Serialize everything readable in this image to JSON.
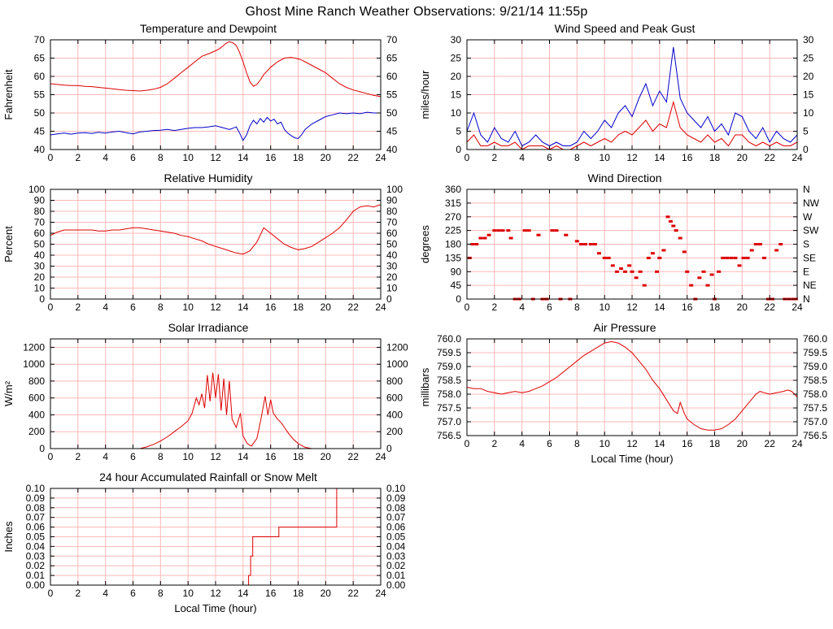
{
  "page_title": "Ghost Mine Ranch Weather Observations: 9/21/14 11:55p",
  "colors": {
    "red": "#dd0000",
    "blue": "#0000cc",
    "grid": "#ffb8b8",
    "frame": "#000000",
    "text": "#000000",
    "background": "#ffffff"
  },
  "chart_data": [
    {
      "type": "line",
      "title": "Temperature and Dewpoint",
      "ylabel": "Fahrenheit",
      "xlim": [
        0,
        24
      ],
      "xtick_step": 2,
      "ylim": [
        40,
        70
      ],
      "yticks": [
        40,
        45,
        50,
        55,
        60,
        65,
        70
      ],
      "ytick_decimals": 0,
      "series": [
        {
          "name": "temperature",
          "color": "#dd0000",
          "x": [
            0,
            0.5,
            1,
            1.5,
            2,
            2.5,
            3,
            3.5,
            4,
            4.5,
            5,
            5.5,
            6,
            6.5,
            7,
            7.5,
            8,
            8.5,
            9,
            9.5,
            10,
            10.5,
            11,
            11.5,
            12,
            12.25,
            12.5,
            12.75,
            13,
            13.25,
            13.5,
            13.75,
            14,
            14.25,
            14.5,
            14.75,
            15,
            15.25,
            15.5,
            16,
            16.5,
            17,
            17.5,
            18,
            18.25,
            18.5,
            19,
            19.5,
            20,
            20.5,
            21,
            21.5,
            22,
            22.5,
            23,
            23.5,
            24
          ],
          "y": [
            58,
            57.8,
            57.6,
            57.5,
            57.5,
            57.3,
            57.2,
            57,
            56.8,
            56.6,
            56.4,
            56.2,
            56.1,
            56,
            56.2,
            56.5,
            57,
            58,
            59.5,
            61,
            62.5,
            64,
            65.5,
            66.2,
            67,
            67.5,
            68.2,
            69,
            69.5,
            69.2,
            68.5,
            66.5,
            64,
            61,
            58.5,
            57.3,
            57.8,
            59,
            60.5,
            62.5,
            64,
            65,
            65.2,
            64.8,
            64.5,
            64,
            63,
            62,
            61,
            59.5,
            58,
            57,
            56.3,
            55.8,
            55.3,
            54.8,
            54.5
          ]
        },
        {
          "name": "dewpoint",
          "color": "#0000cc",
          "x": [
            0,
            0.5,
            1,
            1.5,
            2,
            2.5,
            3,
            3.5,
            4,
            4.5,
            5,
            5.5,
            6,
            6.5,
            7,
            7.5,
            8,
            8.5,
            9,
            9.5,
            10,
            10.5,
            11,
            11.5,
            12,
            12.5,
            13,
            13.25,
            13.5,
            13.75,
            14,
            14.25,
            14.5,
            14.75,
            15,
            15.25,
            15.5,
            15.75,
            16,
            16.25,
            16.5,
            16.75,
            17,
            17.25,
            17.5,
            17.75,
            18,
            18.25,
            18.5,
            19,
            19.5,
            20,
            20.5,
            21,
            21.5,
            22,
            22.5,
            23,
            23.5,
            24
          ],
          "y": [
            44,
            44.3,
            44.5,
            44.2,
            44.5,
            44.6,
            44.4,
            44.7,
            44.5,
            44.8,
            45,
            44.6,
            44.3,
            44.8,
            45,
            45.2,
            45.3,
            45.5,
            45.2,
            45.5,
            45.8,
            46,
            46,
            46.2,
            46.5,
            46,
            45.5,
            45.8,
            46.2,
            44.5,
            42.5,
            44,
            46.5,
            48,
            47,
            48.5,
            47.5,
            48.8,
            47.8,
            48.3,
            47,
            47.5,
            45.5,
            44.5,
            43.8,
            43.2,
            43,
            44,
            45.5,
            47,
            48,
            49,
            49.5,
            50,
            49.8,
            50,
            49.8,
            50.2,
            50,
            50
          ]
        }
      ]
    },
    {
      "type": "line",
      "title": "Wind Speed and Peak Gust",
      "ylabel": "miles/hour",
      "xlim": [
        0,
        24
      ],
      "xtick_step": 2,
      "ylim": [
        0,
        30
      ],
      "yticks": [
        0,
        5,
        10,
        15,
        20,
        25,
        30
      ],
      "ytick_decimals": 0,
      "series": [
        {
          "name": "peak-gust",
          "color": "#0000cc",
          "x": [
            0,
            0.5,
            1,
            1.5,
            2,
            2.5,
            3,
            3.5,
            4,
            4.5,
            5,
            5.5,
            6,
            6.5,
            7,
            7.5,
            8,
            8.5,
            9,
            9.5,
            10,
            10.5,
            11,
            11.5,
            12,
            12.5,
            13,
            13.5,
            14,
            14.5,
            15,
            15.5,
            16,
            16.5,
            17,
            17.5,
            18,
            18.5,
            19,
            19.5,
            20,
            20.5,
            21,
            21.5,
            22,
            22.5,
            23,
            23.5,
            24
          ],
          "y": [
            5,
            10,
            4,
            2,
            6,
            3,
            2,
            5,
            1,
            2,
            4,
            2,
            1,
            2,
            1,
            1,
            2,
            5,
            3,
            5,
            8,
            6,
            10,
            12,
            9,
            14,
            18,
            12,
            16,
            13,
            28,
            14,
            10,
            8,
            6,
            9,
            5,
            7,
            4,
            10,
            9,
            5,
            3,
            6,
            2,
            5,
            3,
            2,
            4
          ]
        },
        {
          "name": "wind-speed",
          "color": "#dd0000",
          "x": [
            0,
            0.5,
            1,
            1.5,
            2,
            2.5,
            3,
            3.5,
            4,
            4.5,
            5,
            5.5,
            6,
            6.5,
            7,
            7.5,
            8,
            8.5,
            9,
            9.5,
            10,
            10.5,
            11,
            11.5,
            12,
            12.5,
            13,
            13.5,
            14,
            14.5,
            15,
            15.5,
            16,
            16.5,
            17,
            17.5,
            18,
            18.5,
            19,
            19.5,
            20,
            20.5,
            21,
            21.5,
            22,
            22.5,
            23,
            23.5,
            24
          ],
          "y": [
            2,
            4,
            1,
            1,
            2,
            1,
            1,
            2,
            0,
            1,
            1,
            1,
            0,
            1,
            0,
            0,
            1,
            2,
            1,
            2,
            3,
            2,
            4,
            5,
            4,
            6,
            8,
            5,
            7,
            6,
            13,
            6,
            4,
            3,
            2,
            4,
            2,
            3,
            1,
            4,
            4,
            2,
            1,
            2,
            1,
            2,
            1,
            1,
            2
          ]
        }
      ]
    },
    {
      "type": "line",
      "title": "Relative Humidity",
      "ylabel": "Percent",
      "xlim": [
        0,
        24
      ],
      "xtick_step": 2,
      "ylim": [
        0,
        100
      ],
      "yticks": [
        0,
        10,
        20,
        30,
        40,
        50,
        60,
        70,
        80,
        90,
        100
      ],
      "ytick_decimals": 0,
      "series": [
        {
          "name": "relative-humidity",
          "color": "#dd0000",
          "x": [
            0,
            0.5,
            1,
            1.5,
            2,
            2.5,
            3,
            3.5,
            4,
            4.5,
            5,
            5.5,
            6,
            6.5,
            7,
            7.5,
            8,
            8.5,
            9,
            9.5,
            10,
            10.5,
            11,
            11.5,
            12,
            12.5,
            13,
            13.5,
            14,
            14.5,
            15,
            15.5,
            16,
            16.5,
            17,
            17.5,
            18,
            18.5,
            19,
            19.5,
            20,
            20.5,
            21,
            21.5,
            22,
            22.5,
            23,
            23.5,
            24
          ],
          "y": [
            58,
            61,
            63,
            63,
            63,
            63,
            63,
            62,
            62,
            63,
            63,
            64,
            65,
            65,
            64,
            63,
            62,
            61,
            60,
            58,
            57,
            55,
            53,
            50,
            48,
            46,
            44,
            42,
            41,
            44,
            52,
            65,
            60,
            55,
            50,
            47,
            45,
            46,
            48,
            52,
            56,
            60,
            65,
            72,
            80,
            84,
            85,
            84,
            86
          ]
        }
      ]
    },
    {
      "type": "scatter",
      "title": "Wind Direction",
      "ylabel": "degrees",
      "xlim": [
        0,
        24
      ],
      "xtick_step": 2,
      "ylim": [
        0,
        360
      ],
      "yticks": [
        0,
        45,
        90,
        135,
        180,
        225,
        270,
        315,
        360
      ],
      "ytick_decimals": 0,
      "rtick_labels": [
        "N",
        "NE",
        "E",
        "SE",
        "S",
        "SW",
        "W",
        "NW",
        "N"
      ],
      "series": [
        {
          "name": "wind-direction",
          "color": "#dd0000",
          "type": "scatter",
          "x": [
            0.2,
            0.4,
            0.7,
            1.0,
            1.3,
            1.6,
            2.0,
            2.3,
            2.6,
            3.0,
            3.2,
            3.5,
            3.8,
            4.2,
            4.5,
            4.8,
            5.2,
            5.5,
            5.8,
            6.2,
            6.5,
            6.8,
            7.2,
            7.5,
            8.0,
            8.3,
            8.6,
            9.0,
            9.3,
            9.6,
            10.0,
            10.3,
            10.6,
            10.9,
            11.2,
            11.5,
            11.8,
            12.0,
            12.3,
            12.6,
            12.9,
            13.2,
            13.5,
            13.8,
            14.0,
            14.3,
            14.6,
            14.8,
            15.0,
            15.2,
            15.5,
            15.8,
            16.0,
            16.3,
            16.6,
            16.9,
            17.2,
            17.5,
            17.8,
            18.0,
            18.3,
            18.6,
            18.9,
            19.2,
            19.5,
            19.8,
            20.1,
            20.4,
            20.7,
            21.0,
            21.3,
            21.6,
            21.9,
            22.2,
            22.5,
            22.8,
            23.1,
            23.4,
            23.7,
            23.9
          ],
          "y": [
            135,
            180,
            180,
            200,
            200,
            210,
            225,
            225,
            225,
            225,
            200,
            0,
            0,
            225,
            225,
            0,
            210,
            0,
            0,
            225,
            225,
            0,
            210,
            0,
            190,
            180,
            180,
            180,
            180,
            150,
            135,
            135,
            110,
            90,
            100,
            90,
            110,
            90,
            70,
            90,
            45,
            135,
            150,
            90,
            135,
            160,
            270,
            255,
            240,
            225,
            200,
            155,
            90,
            45,
            0,
            70,
            90,
            45,
            80,
            0,
            90,
            135,
            135,
            135,
            135,
            110,
            135,
            135,
            160,
            180,
            180,
            135,
            0,
            0,
            160,
            180,
            0,
            0,
            0,
            0
          ]
        }
      ]
    },
    {
      "type": "line",
      "title": "Solar Irradiance",
      "ylabel": "W/m²",
      "xlim": [
        0,
        24
      ],
      "xtick_step": 2,
      "ylim": [
        0,
        1300
      ],
      "yticks": [
        0,
        200,
        400,
        600,
        800,
        1000,
        1200
      ],
      "ytick_decimals": 0,
      "series": [
        {
          "name": "solar-irradiance",
          "color": "#dd0000",
          "x": [
            0,
            6.5,
            7,
            7.5,
            8,
            8.5,
            9,
            9.5,
            10,
            10.3,
            10.6,
            10.8,
            11,
            11.2,
            11.4,
            11.6,
            11.8,
            12,
            12.2,
            12.4,
            12.6,
            12.8,
            13,
            13.2,
            13.5,
            13.8,
            14,
            14.3,
            14.6,
            15,
            15.3,
            15.6,
            15.8,
            16,
            16.2,
            16.5,
            16.8,
            17,
            17.3,
            17.6,
            18,
            18.5,
            19,
            24
          ],
          "y": [
            0,
            0,
            20,
            50,
            90,
            140,
            200,
            260,
            330,
            420,
            600,
            520,
            650,
            480,
            870,
            560,
            900,
            600,
            880,
            450,
            830,
            400,
            800,
            350,
            250,
            420,
            150,
            60,
            30,
            120,
            350,
            620,
            400,
            580,
            420,
            350,
            300,
            250,
            180,
            120,
            60,
            15,
            0,
            0
          ]
        }
      ]
    },
    {
      "type": "line",
      "title": "Air Pressure",
      "ylabel": "millibars",
      "xlabel": "Local Time (hour)",
      "xlim": [
        0,
        24
      ],
      "xtick_step": 2,
      "ylim": [
        756.5,
        760.0
      ],
      "yticks": [
        756.5,
        757.0,
        757.5,
        758.0,
        758.5,
        759.0,
        759.5,
        760.0
      ],
      "ytick_decimals": 1,
      "series": [
        {
          "name": "air-pressure",
          "color": "#dd0000",
          "x": [
            0,
            0.5,
            1,
            1.5,
            2,
            2.5,
            3,
            3.5,
            4,
            4.5,
            5,
            5.5,
            6,
            6.5,
            7,
            7.5,
            8,
            8.5,
            9,
            9.5,
            10,
            10.5,
            11,
            11.5,
            12,
            12.5,
            13,
            13.5,
            14,
            14.5,
            15,
            15.3,
            15.5,
            15.8,
            16,
            16.5,
            17,
            17.5,
            18,
            18.5,
            19,
            19.5,
            20,
            20.5,
            21,
            21.3,
            21.6,
            22,
            22.5,
            23,
            23.3,
            23.6,
            24
          ],
          "y": [
            758.25,
            758.2,
            758.2,
            758.1,
            758.05,
            758.0,
            758.05,
            758.1,
            758.05,
            758.1,
            758.2,
            758.3,
            758.45,
            758.6,
            758.8,
            759.0,
            759.2,
            759.4,
            759.55,
            759.7,
            759.85,
            759.9,
            759.85,
            759.7,
            759.5,
            759.2,
            758.9,
            758.5,
            758.2,
            757.8,
            757.4,
            757.3,
            757.7,
            757.3,
            757.1,
            756.9,
            756.75,
            756.7,
            756.7,
            756.75,
            756.9,
            757.1,
            757.4,
            757.7,
            758.0,
            758.1,
            758.05,
            758.0,
            758.05,
            758.1,
            758.15,
            758.1,
            757.9
          ]
        }
      ]
    },
    {
      "type": "line",
      "title": "24 hour Accumulated Rainfall or Snow Melt",
      "ylabel": "Inches",
      "xlabel": "Local Time (hour)",
      "xlim": [
        0,
        24
      ],
      "xtick_step": 2,
      "ylim": [
        0,
        0.1
      ],
      "yticks": [
        0,
        0.01,
        0.02,
        0.03,
        0.04,
        0.05,
        0.06,
        0.07,
        0.08,
        0.09,
        0.1
      ],
      "ytick_decimals": 2,
      "series": [
        {
          "name": "accumulated-rainfall",
          "color": "#dd0000",
          "x": [
            0,
            14.4,
            14.4,
            14.55,
            14.55,
            14.7,
            14.7,
            16.6,
            16.6,
            20.8,
            20.8,
            24
          ],
          "y": [
            0,
            0,
            0.01,
            0.01,
            0.03,
            0.03,
            0.05,
            0.05,
            0.06,
            0.06,
            0.1,
            0.1
          ]
        }
      ]
    }
  ]
}
